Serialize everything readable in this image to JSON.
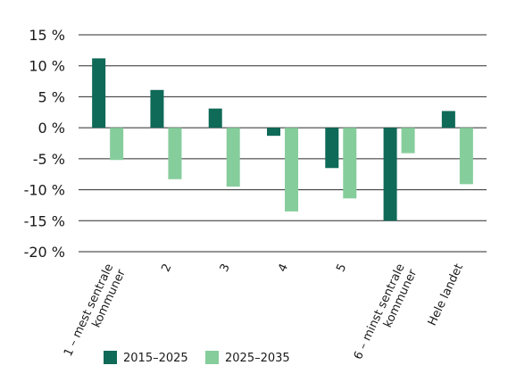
{
  "chart_data": {
    "type": "bar",
    "title": "",
    "xlabel": "",
    "ylabel": "",
    "ylim": [
      -20,
      15
    ],
    "yticks": [
      15,
      10,
      5,
      0,
      -5,
      -10,
      -15,
      -20
    ],
    "ytick_labels": [
      "15 %",
      "10 %",
      "5 %",
      "0 %",
      "-5 %",
      "-10 %",
      "-15 %",
      "-20 %"
    ],
    "grid": true,
    "legend_position": "bottom",
    "categories": [
      [
        "1 – mest sentrale",
        "kommuner"
      ],
      [
        "2"
      ],
      [
        "3"
      ],
      [
        "4"
      ],
      [
        "5"
      ],
      [
        "6 – minst sentrale",
        "kommuner"
      ],
      [
        "Hele landet"
      ]
    ],
    "series": [
      {
        "name": "2015–2025",
        "color": "#0f6a58",
        "values": [
          11.2,
          6.1,
          3.1,
          -1.3,
          -6.5,
          -15.0,
          2.7
        ]
      },
      {
        "name": "2025–2035",
        "color": "#86cd9c",
        "values": [
          -5.2,
          -8.3,
          -9.5,
          -13.5,
          -11.4,
          -4.1,
          -9.1
        ]
      }
    ]
  }
}
